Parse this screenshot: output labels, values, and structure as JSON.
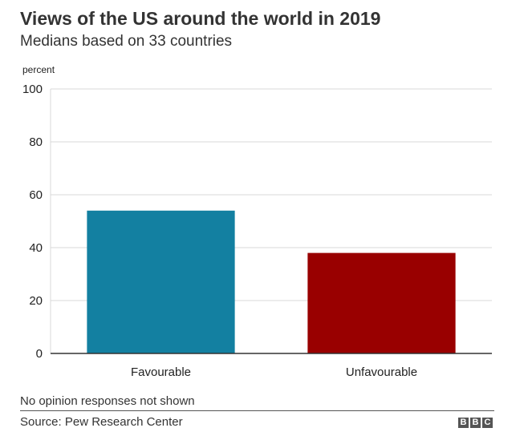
{
  "header": {
    "title": "Views of the US around the world in 2019",
    "subtitle": "Medians based on 33 countries"
  },
  "footer": {
    "note": "No opinion responses not shown",
    "source": "Source: Pew Research Center",
    "logo_letters": [
      "B",
      "B",
      "C"
    ]
  },
  "chart_data": {
    "type": "bar",
    "title": "Views of the US around the world in 2019",
    "subtitle": "Medians based on 33 countries",
    "unit_label": "percent",
    "categories": [
      "Favourable",
      "Unfavourable"
    ],
    "values": [
      54,
      38
    ],
    "colors": [
      "#1380a1",
      "#990000"
    ],
    "ylim": [
      0,
      100
    ],
    "yticks": [
      "0",
      "20",
      "40",
      "60",
      "80",
      "100"
    ],
    "grid": true,
    "legend": "none"
  }
}
